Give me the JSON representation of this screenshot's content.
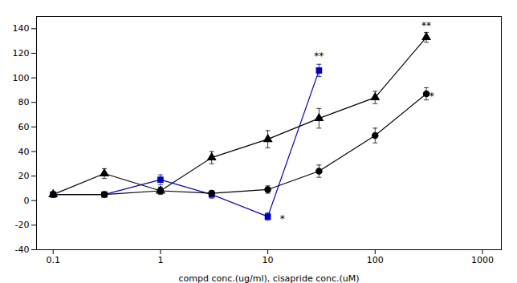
{
  "chart_data": {
    "type": "line",
    "xlabel": "compd conc.(ug/ml), cisapride conc.(uM)",
    "log": "x",
    "xlim": [
      0.07,
      1500
    ],
    "xticks": [
      0.1,
      1,
      10,
      100,
      1000
    ],
    "ylim": [
      -40,
      150
    ],
    "yticks": [
      -40,
      -20,
      0,
      20,
      40,
      60,
      80,
      100,
      120,
      140
    ],
    "series": [
      {
        "color": "#0000bb",
        "marker": "square",
        "x": [
          0.1,
          0.3,
          1,
          3,
          10,
          30
        ],
        "values": [
          5,
          5,
          17,
          5,
          -13,
          106
        ],
        "yerr": [
          2,
          2,
          4,
          3,
          3,
          5
        ]
      },
      {
        "color": "#000000",
        "marker": "triangle",
        "x": [
          0.1,
          0.3,
          1,
          3,
          10,
          30,
          100,
          300
        ],
        "values": [
          5,
          22,
          8,
          35,
          50,
          67,
          84,
          133
        ],
        "yerr": [
          2,
          4,
          2,
          5,
          7,
          8,
          5,
          4
        ]
      },
      {
        "color": "#000000",
        "marker": "circle",
        "x": [
          0.1,
          0.3,
          1,
          3,
          10,
          30,
          100,
          300
        ],
        "values": [
          5,
          5,
          8,
          6,
          9,
          24,
          53,
          87
        ],
        "yerr": [
          2,
          2,
          3,
          2,
          3,
          5,
          6,
          5
        ]
      }
    ],
    "annotations": [
      {
        "x": 30,
        "y": 115,
        "text": "**"
      },
      {
        "x": 300,
        "y": 140,
        "text": "**"
      },
      {
        "x": 13,
        "y": -12,
        "text": "*"
      },
      {
        "x": 320,
        "y": 85,
        "text": "*"
      }
    ]
  }
}
